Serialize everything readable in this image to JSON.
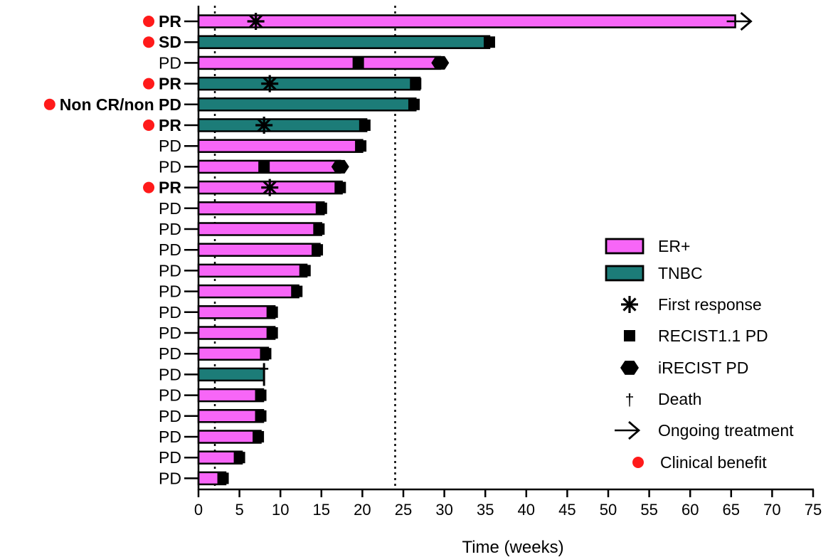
{
  "chart_data": {
    "type": "swimmer",
    "xlabel": "Time (weeks)",
    "xlim": [
      0,
      75
    ],
    "x_ticks": [
      0,
      5,
      10,
      15,
      20,
      25,
      30,
      35,
      40,
      45,
      50,
      55,
      60,
      65,
      70,
      75
    ],
    "reference_lines_x": [
      2,
      24
    ],
    "colors": {
      "ER+": "#f766f7",
      "TNBC": "#1c7c78",
      "clinical_benefit": "#ff1a1a"
    },
    "legend": [
      {
        "key": "er",
        "label": "ER+",
        "symbol": "bar-er"
      },
      {
        "key": "tnbc",
        "label": "TNBC",
        "symbol": "bar-tnbc"
      },
      {
        "key": "first",
        "label": "First response",
        "symbol": "asterisk"
      },
      {
        "key": "recist",
        "label": "RECIST1.1 PD",
        "symbol": "square"
      },
      {
        "key": "irecist",
        "label": "iRECIST PD",
        "symbol": "hexagon"
      },
      {
        "key": "death",
        "label": "Death",
        "symbol": "dagger"
      },
      {
        "key": "ongoing",
        "label": "Ongoing treatment",
        "symbol": "arrow"
      },
      {
        "key": "benefit",
        "label": "Clinical benefit",
        "symbol": "dot"
      }
    ],
    "patients": [
      {
        "label": "PR",
        "bold": true,
        "benefit": true,
        "subtype": "ER+",
        "end": 65.5,
        "first_response": 7,
        "ongoing": true
      },
      {
        "label": "SD",
        "bold": true,
        "benefit": true,
        "subtype": "TNBC",
        "end": 35.5,
        "recist_pd": 35.5
      },
      {
        "label": "PD",
        "bold": false,
        "benefit": false,
        "subtype": "ER+",
        "end": 29.5,
        "recist_pd": 19.5,
        "irecist_pd": 29.5
      },
      {
        "label": "PR",
        "bold": true,
        "benefit": true,
        "subtype": "TNBC",
        "end": 27,
        "first_response": 8.7,
        "recist_pd": 26.5
      },
      {
        "label": "Non CR/non PD",
        "bold": true,
        "benefit": true,
        "subtype": "TNBC",
        "end": 26.5,
        "recist_pd": 26.3
      },
      {
        "label": "PR",
        "bold": true,
        "benefit": true,
        "subtype": "TNBC",
        "end": 20.5,
        "first_response": 8,
        "recist_pd": 20.3
      },
      {
        "label": "PD",
        "bold": false,
        "benefit": false,
        "subtype": "ER+",
        "end": 20,
        "recist_pd": 19.8
      },
      {
        "label": "PD",
        "bold": false,
        "benefit": false,
        "subtype": "ER+",
        "end": 17.3,
        "recist_pd": 8,
        "irecist_pd": 17.3
      },
      {
        "label": "PR",
        "bold": true,
        "benefit": true,
        "subtype": "ER+",
        "end": 17.5,
        "first_response": 8.7,
        "recist_pd": 17.3
      },
      {
        "label": "PD",
        "bold": false,
        "benefit": false,
        "subtype": "ER+",
        "end": 15.3,
        "recist_pd": 15
      },
      {
        "label": "PD",
        "bold": false,
        "benefit": false,
        "subtype": "ER+",
        "end": 15,
        "recist_pd": 14.7
      },
      {
        "label": "PD",
        "bold": false,
        "benefit": false,
        "subtype": "ER+",
        "end": 14.8,
        "recist_pd": 14.5
      },
      {
        "label": "PD",
        "bold": false,
        "benefit": false,
        "subtype": "ER+",
        "end": 13.2,
        "recist_pd": 13
      },
      {
        "label": "PD",
        "bold": false,
        "benefit": false,
        "subtype": "ER+",
        "end": 12.2,
        "recist_pd": 12
      },
      {
        "label": "PD",
        "bold": false,
        "benefit": false,
        "subtype": "ER+",
        "end": 9.3,
        "recist_pd": 9
      },
      {
        "label": "PD",
        "bold": false,
        "benefit": false,
        "subtype": "ER+",
        "end": 9.3,
        "recist_pd": 9
      },
      {
        "label": "PD",
        "bold": false,
        "benefit": false,
        "subtype": "ER+",
        "end": 8.5,
        "recist_pd": 8.2
      },
      {
        "label": "PD",
        "bold": false,
        "benefit": false,
        "subtype": "TNBC",
        "end": 8,
        "death": 8
      },
      {
        "label": "PD",
        "bold": false,
        "benefit": false,
        "subtype": "ER+",
        "end": 7.9,
        "recist_pd": 7.6
      },
      {
        "label": "PD",
        "bold": false,
        "benefit": false,
        "subtype": "ER+",
        "end": 7.9,
        "recist_pd": 7.6
      },
      {
        "label": "PD",
        "bold": false,
        "benefit": false,
        "subtype": "ER+",
        "end": 7.6,
        "recist_pd": 7.3
      },
      {
        "label": "PD",
        "bold": false,
        "benefit": false,
        "subtype": "ER+",
        "end": 5.3,
        "recist_pd": 5
      },
      {
        "label": "PD",
        "bold": false,
        "benefit": false,
        "subtype": "ER+",
        "end": 3.3,
        "recist_pd": 3
      }
    ]
  }
}
